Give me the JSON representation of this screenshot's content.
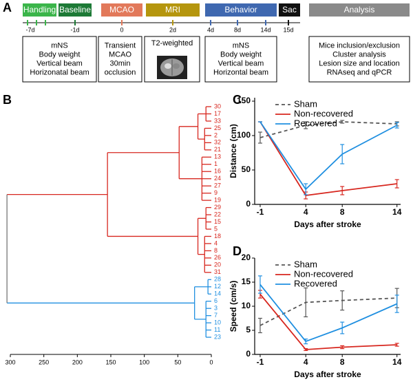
{
  "panel_labels": [
    "A",
    "B",
    "C",
    "D"
  ],
  "timeline": {
    "phases": [
      {
        "label": "Handling",
        "color": "#3bb54a"
      },
      {
        "label": "Baseline",
        "color": "#1d7a36"
      },
      {
        "label": "MCAO",
        "color": "#e2795a"
      },
      {
        "label": "MRI",
        "color": "#b5960e"
      },
      {
        "label": "Behavior",
        "color": "#3f68b0"
      },
      {
        "label": "Sac",
        "color": "#111111"
      },
      {
        "label": "Analysis",
        "color": "#8a8a8a"
      }
    ],
    "ticks": [
      "-7d",
      "-1d",
      "0",
      "2d",
      "4d",
      "8d",
      "14d",
      "15d"
    ],
    "boxes": [
      [
        "mNS",
        "Body weight",
        "Vertical beam",
        "Horizonatal beam"
      ],
      [
        "Transient",
        "MCAO",
        "30min",
        "occlusion"
      ],
      [
        "T2-weighted"
      ],
      [
        "mNS",
        "Body weight",
        "Vertical beam",
        "Horizontal beam"
      ],
      [
        "Mice inclusion/exclusion",
        "Cluster analysis",
        "Lesion size and location",
        "RNAseq and qPCR"
      ]
    ]
  },
  "chart_data": [
    {
      "type": "dendrogram",
      "xlim": [
        300,
        0
      ],
      "xticks": [
        300,
        250,
        200,
        150,
        100,
        50,
        0
      ],
      "tree": {
        "height": 305,
        "color": "#777777",
        "children": [
          {
            "height": 155,
            "color": "#d7261e",
            "children": [
              {
                "height": 48,
                "children": [
                  {
                    "height": 20,
                    "children": [
                      {
                        "height": 8,
                        "children": [
                          "30",
                          "17",
                          "33"
                        ]
                      },
                      {
                        "height": 10,
                        "children": [
                          "25",
                          "2",
                          "32",
                          "21"
                        ]
                      }
                    ]
                  },
                  {
                    "height": 14,
                    "children": [
                      "13",
                      "1",
                      "16",
                      "24",
                      "27",
                      "9",
                      "19"
                    ]
                  }
                ]
              },
              {
                "height": 20,
                "children": [
                  {
                    "height": 8,
                    "children": [
                      "29",
                      "22",
                      "15",
                      "5"
                    ]
                  },
                  {
                    "height": 10,
                    "children": [
                      "18",
                      "4",
                      "8",
                      "26",
                      "20",
                      "31"
                    ]
                  }
                ]
              }
            ]
          },
          {
            "height": 25,
            "color": "#1f8fe0",
            "children": [
              {
                "height": 5,
                "children": [
                  "28",
                  "12",
                  "14"
                ]
              },
              {
                "height": 8,
                "children": [
                  "6",
                  "3",
                  "7",
                  "10",
                  "11",
                  "23"
                ]
              }
            ]
          }
        ]
      }
    },
    {
      "type": "line",
      "x_label": "Days after stroke",
      "y_label": "Distance (cm)",
      "x": [
        -1,
        4,
        8,
        14
      ],
      "xlim": [
        -1.6,
        14.4
      ],
      "xticks": [
        -1,
        4,
        8,
        14
      ],
      "ylim": [
        0,
        155
      ],
      "yticks": [
        0,
        50,
        100,
        150
      ],
      "legend": "upper left",
      "series": [
        {
          "name": "Sham",
          "color": "#555555",
          "dash": true,
          "values": [
            97,
            115,
            120,
            117
          ],
          "errors": [
            8,
            5,
            2,
            3
          ]
        },
        {
          "name": "Non-recovered",
          "color": "#d7261e",
          "dash": false,
          "values": [
            120,
            13,
            20,
            30
          ],
          "errors": [
            0,
            5,
            6,
            6
          ]
        },
        {
          "name": "Recovered",
          "color": "#1f8fe0",
          "dash": false,
          "values": [
            120,
            22,
            73,
            115
          ],
          "errors": [
            0,
            8,
            14,
            4
          ]
        }
      ]
    },
    {
      "type": "line",
      "x_label": "Days after stroke",
      "y_label": "Speed (cm/s)",
      "x": [
        -1,
        4,
        8,
        14
      ],
      "xlim": [
        -1.6,
        14.4
      ],
      "xticks": [
        -1,
        4,
        8,
        14
      ],
      "ylim": [
        0,
        20
      ],
      "yticks": [
        0,
        5,
        10,
        15,
        20
      ],
      "legend": "upper left",
      "series": [
        {
          "name": "Sham",
          "color": "#555555",
          "dash": true,
          "values": [
            6,
            10.8,
            11.2,
            11.7
          ],
          "errors": [
            1.5,
            3,
            2,
            2
          ]
        },
        {
          "name": "Non-recovered",
          "color": "#d7261e",
          "dash": false,
          "values": [
            12.5,
            1,
            1.5,
            2
          ],
          "errors": [
            0.8,
            0.2,
            0.3,
            0.3
          ]
        },
        {
          "name": "Recovered",
          "color": "#1f8fe0",
          "dash": false,
          "values": [
            14.5,
            2.7,
            5.5,
            10.5
          ],
          "errors": [
            1.8,
            0.5,
            1.2,
            1.8
          ]
        }
      ]
    }
  ]
}
